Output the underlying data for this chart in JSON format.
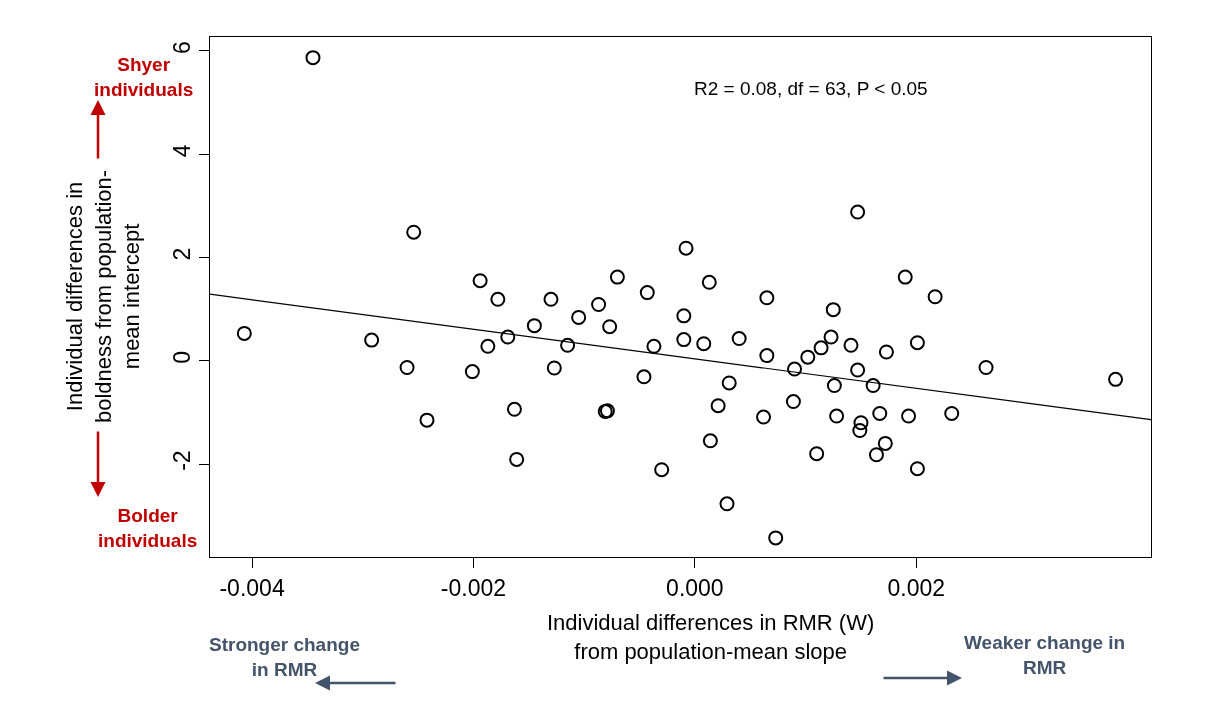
{
  "chart_data": {
    "type": "scatter",
    "xlabel": "Individual differences in RMR (W)\nfrom population-mean slope",
    "ylabel": "Individual differences in\nboldness from population-\nmean intercept",
    "xlim": [
      -0.00438,
      0.00412
    ],
    "ylim": [
      -3.8,
      6.27
    ],
    "xticks": [
      {
        "value": -0.004,
        "label": "-0.004"
      },
      {
        "value": -0.002,
        "label": "-0.002"
      },
      {
        "value": 0,
        "label": "0.000"
      },
      {
        "value": 0.002,
        "label": "0.002"
      }
    ],
    "yticks": [
      -2,
      0,
      2,
      4,
      6
    ],
    "annotations": [
      "R2 = 0.08, df = 63, P < 0.05",
      "Shyer\nindividuals",
      "Bolder\nindividuals",
      "Stronger change\nin RMR",
      "Weaker change in\nRMR"
    ],
    "series": [
      {
        "marker": "circle",
        "color": "#000000",
        "x": [
          -0.00345,
          -0.00254,
          -0.00194,
          -0.00178,
          -0.00407,
          -0.00292,
          -0.00169,
          -0.00187,
          -0.0026,
          -0.00201,
          -0.00163,
          -0.00242,
          -0.00161,
          -0.00145,
          -0.0013,
          -0.00115,
          -0.00127,
          -0.00105,
          -0.00087,
          -0.0007,
          -0.00077,
          -0.00043,
          -0.00037,
          -0.00046,
          -0.00081,
          -0.00079,
          -0.0003,
          -8e-05,
          0.00013,
          -0.0001,
          -0.0001,
          8e-05,
          0.0004,
          0.00031,
          0.00021,
          0.00014,
          0.00029,
          0.00073,
          0.00065,
          0.00065,
          0.00062,
          0.00089,
          0.0009,
          0.00102,
          0.00114,
          0.00123,
          0.00125,
          0.00126,
          0.00128,
          0.0011,
          0.00147,
          0.00141,
          0.00147,
          0.00161,
          0.00173,
          0.0019,
          0.00217,
          0.00201,
          0.00263,
          0.0038,
          0.00167,
          0.0015,
          0.00149,
          0.00193,
          0.00232,
          0.00172,
          0.00164,
          0.00201
        ],
        "values": [
          5.87,
          2.49,
          1.55,
          1.19,
          0.53,
          0.4,
          0.46,
          0.28,
          -0.13,
          -0.21,
          -0.94,
          -1.15,
          -1.91,
          0.68,
          1.19,
          0.3,
          -0.14,
          0.84,
          1.09,
          1.62,
          0.66,
          1.32,
          0.28,
          -0.31,
          -0.98,
          -0.97,
          -2.11,
          2.18,
          1.52,
          0.87,
          0.41,
          0.33,
          0.43,
          -0.43,
          -0.87,
          -1.55,
          -2.77,
          -3.43,
          1.22,
          0.1,
          -1.09,
          -0.79,
          -0.16,
          0.07,
          0.25,
          0.46,
          0.99,
          -0.48,
          -1.07,
          -1.8,
          2.88,
          0.3,
          -0.18,
          -0.48,
          0.17,
          1.62,
          1.24,
          0.35,
          -0.13,
          -0.36,
          -1.02,
          -1.2,
          -1.35,
          -1.07,
          -1.02,
          -1.6,
          -1.82,
          -2.09
        ]
      },
      {
        "type": "line",
        "marker": "none",
        "color": "#000000",
        "x": [
          -0.00438,
          0.00412
        ],
        "values": [
          1.29,
          -1.14
        ]
      }
    ]
  }
}
